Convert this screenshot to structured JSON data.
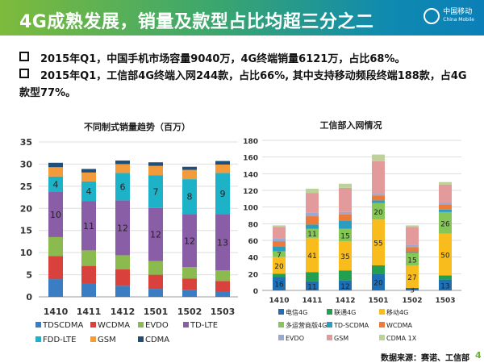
{
  "header": {
    "title": "4G成熟发展，销量及款型占比均超三分之二",
    "logo_cn": "中国移动",
    "logo_en": "China Mobile"
  },
  "bullets": [
    "2015年Q1，中国手机市场容量9040万，4G终端销量6121万，占比68%。",
    "2015年Q1，工信部4G终端入网244款，占比66%, 其中支持移动频段终端188款，占4G款型77%。"
  ],
  "footer": {
    "source": "数据来源：赛诺、工信部",
    "page": "4"
  },
  "chart_data": [
    {
      "type": "bar",
      "stacked": true,
      "title": "不同制式销量趋势（百万）",
      "categories": [
        "1410",
        "1411",
        "1412",
        "1501",
        "1502",
        "1503"
      ],
      "ylim": [
        0,
        35
      ],
      "yticks": [
        0,
        5,
        10,
        15,
        20,
        25,
        30,
        35
      ],
      "grid": true,
      "legend": "bottom",
      "series": [
        {
          "name": "TDSCDMA",
          "color": "#3a7dc2",
          "values": [
            4,
            3,
            2.5,
            1.8,
            1.5,
            1.1
          ]
        },
        {
          "name": "WCDMA",
          "color": "#d9413c",
          "values": [
            5.2,
            4,
            3.7,
            3.2,
            2.6,
            2.5
          ]
        },
        {
          "name": "EVDO",
          "color": "#8bbb4e",
          "values": [
            4.3,
            3.5,
            3.2,
            3.1,
            2.6,
            2.4
          ]
        },
        {
          "name": "TD-LTE",
          "color": "#8a5ea6",
          "values": [
            10.2,
            11.1,
            12.4,
            12,
            12,
            12.7
          ],
          "labels": [
            "10",
            "11",
            "12",
            "12",
            "12",
            "13"
          ]
        },
        {
          "name": "FDD-LTE",
          "color": "#1eb2c9",
          "values": [
            3.5,
            4.5,
            6.2,
            7.4,
            7.9,
            9.3
          ],
          "labels": [
            "4",
            "4",
            "6",
            "7",
            "8",
            "9"
          ]
        },
        {
          "name": "GSM",
          "color": "#f39a3a",
          "values": [
            2.1,
            2,
            2,
            2.1,
            2.1,
            1.9
          ]
        },
        {
          "name": "CDMA",
          "color": "#1e4e79",
          "values": [
            1,
            0.8,
            0.8,
            0.8,
            0.7,
            0.8
          ]
        }
      ]
    },
    {
      "type": "bar",
      "stacked": true,
      "title": "工信部入网情况",
      "categories": [
        "1410",
        "1411",
        "1412",
        "1501",
        "1502",
        "1503"
      ],
      "ylim": [
        0,
        180
      ],
      "yticks": [
        0,
        20,
        40,
        60,
        80,
        100,
        120,
        140,
        160,
        180
      ],
      "grid": true,
      "legend": "bottom",
      "series": [
        {
          "name": "电信4G",
          "color": "#1f6fb5",
          "values": [
            16,
            11,
            12,
            20,
            3,
            13
          ],
          "labels": [
            "16",
            "11",
            "12",
            "20",
            "3",
            "13"
          ]
        },
        {
          "name": "联通4G",
          "color": "#22a050",
          "values": [
            4,
            11,
            12,
            10,
            0,
            5
          ]
        },
        {
          "name": "移动4G",
          "color": "#f8bd1c",
          "values": [
            20,
            41,
            35,
            55,
            27,
            50
          ],
          "labels": [
            "20",
            "41",
            "35",
            "55",
            "27",
            "50"
          ]
        },
        {
          "name": "多运营商版4G",
          "color": "#86c658",
          "values": [
            7,
            11,
            15,
            20,
            15,
            26
          ],
          "labels": [
            "7",
            "11",
            "15",
            "20",
            "15",
            "26"
          ]
        },
        {
          "name": "TD-SCDMA",
          "color": "#2a9ec0",
          "values": [
            6,
            5,
            10,
            3,
            1,
            3
          ]
        },
        {
          "name": "WCDMA",
          "color": "#ec7b3a",
          "values": [
            6,
            10,
            7,
            6,
            6,
            6
          ]
        },
        {
          "name": "EVDO",
          "color": "#98a9d6",
          "values": [
            3,
            4,
            3,
            2,
            3,
            2
          ]
        },
        {
          "name": "GSM",
          "color": "#e39a9a",
          "values": [
            14,
            24,
            29,
            39,
            21,
            22
          ]
        },
        {
          "name": "CDMA 1X",
          "color": "#bfd19a",
          "values": [
            2,
            5,
            5,
            8,
            2,
            3
          ]
        }
      ]
    }
  ]
}
